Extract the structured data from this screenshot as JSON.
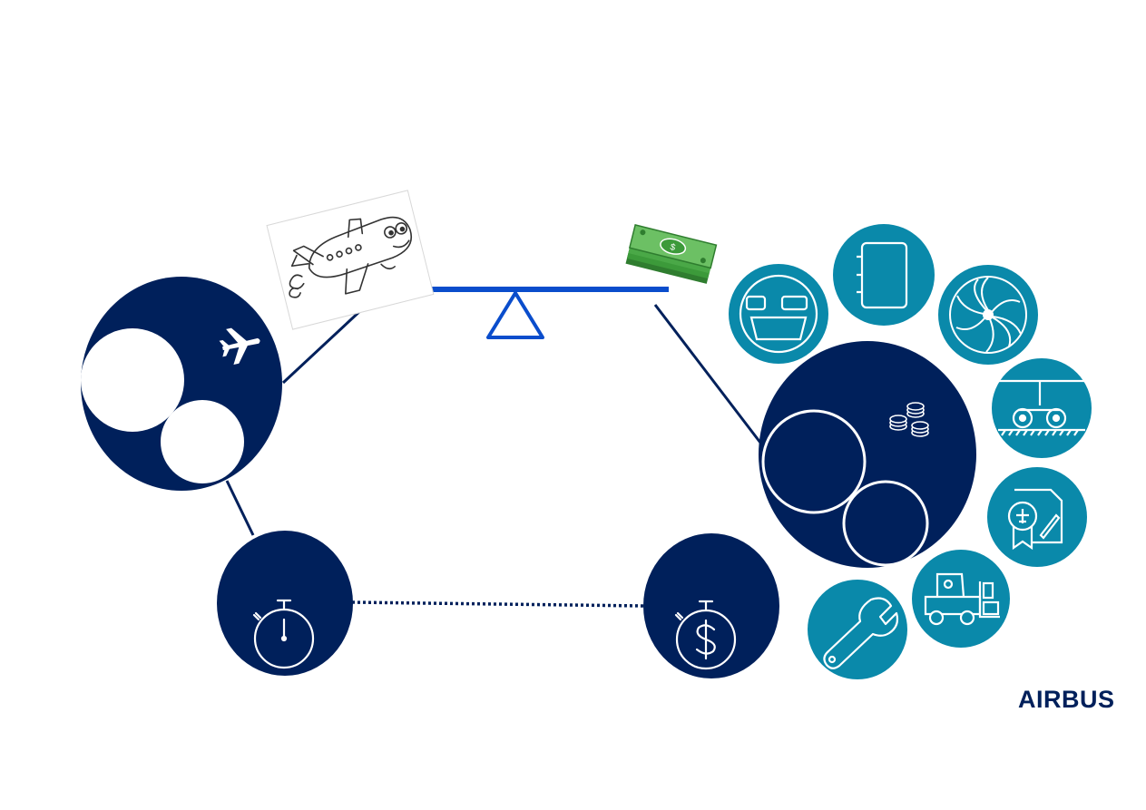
{
  "brand": {
    "logo_text": "AIRBUS"
  },
  "colors": {
    "navy": "#00205b",
    "teal": "#0a89aa",
    "balance_blue": "#0a4dcc",
    "money_green": "#5fb35a"
  },
  "left_cluster": {
    "icon": "airplane-icon",
    "bottom_node_icon": "stopwatch-icon"
  },
  "right_cluster": {
    "icon": "coin-stacks-icon",
    "bottom_node_icon": "dollar-stopwatch-icon",
    "satellites": [
      "cabin-seats-icon",
      "manual-book-icon",
      "engine-fan-icon",
      "landing-gear-icon",
      "certificate-icon",
      "forklift-icon",
      "wrench-icon"
    ]
  },
  "balance": {
    "left_weight_icon": "cartoon-airplane-icon",
    "right_weight_icon": "money-stack-icon"
  }
}
